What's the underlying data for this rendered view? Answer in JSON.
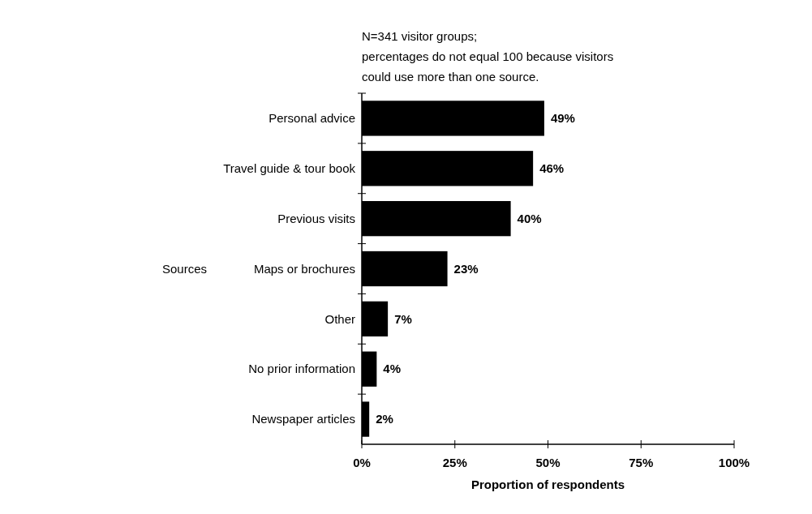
{
  "chart_data": {
    "type": "bar",
    "orientation": "horizontal",
    "xlabel": "Proportion of respondents",
    "ylabel": "Sources",
    "annotations": [
      "N=341 visitor groups;",
      "percentages do not equal 100 because visitors",
      "could use more than one source."
    ],
    "categories": [
      "Personal advice",
      "Travel guide & tour book",
      "Previous visits",
      "Maps or brochures",
      "Other",
      "No prior information",
      "Newspaper articles"
    ],
    "values": [
      49,
      46,
      40,
      23,
      7,
      4,
      2
    ],
    "value_labels": [
      "49%",
      "46%",
      "40%",
      "23%",
      "7%",
      "4%",
      "2%"
    ],
    "color": "#000000",
    "xlim": [
      0,
      100
    ],
    "xticks": [
      {
        "value": 0,
        "label": "0%"
      },
      {
        "value": 25,
        "label": "25%"
      },
      {
        "value": 50,
        "label": "50%"
      },
      {
        "value": 75,
        "label": "75%"
      },
      {
        "value": 100,
        "label": "100%"
      }
    ],
    "grid": false
  }
}
